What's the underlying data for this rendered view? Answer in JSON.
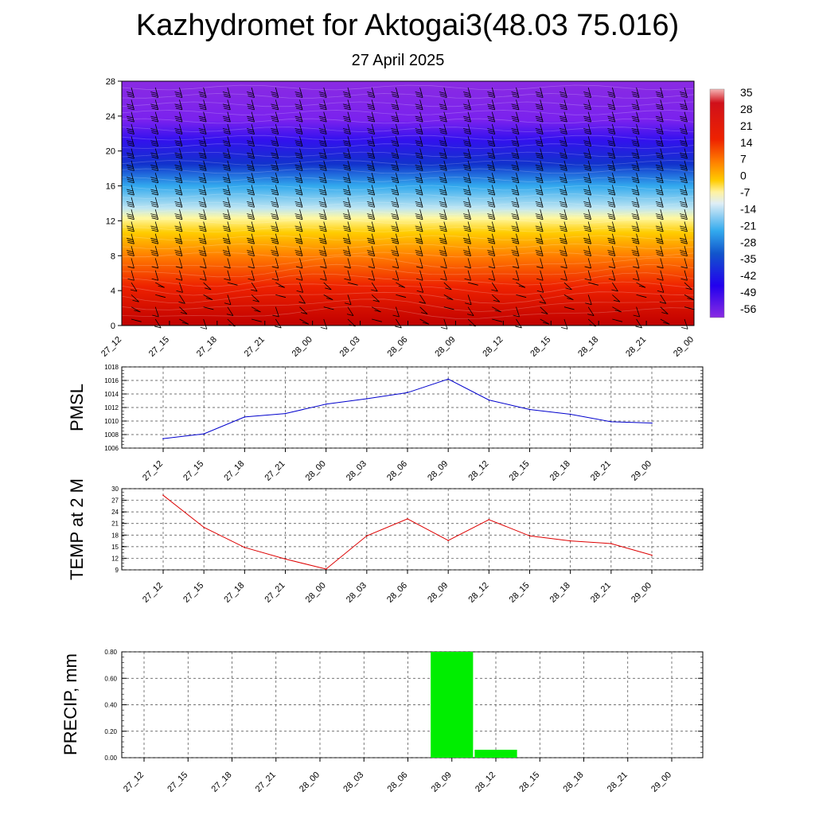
{
  "title": "Kazhydromet for Aktogai3(48.03 75.016)",
  "subtitle": "27 April 2025",
  "colors": {
    "pmsl_line": "#0000cc",
    "temp_line": "#dd0000",
    "precip_bar": "#00ee00"
  },
  "chart_data": [
    {
      "type": "heatmap",
      "name_hint": "cross-section",
      "x_ticks": [
        "27_12",
        "27_15",
        "27_18",
        "27_21",
        "28_00",
        "28_03",
        "28_06",
        "28_09",
        "28_12",
        "28_15",
        "28_18",
        "28_21",
        "29_00"
      ],
      "y_ticks": [
        "0",
        "4",
        "8",
        "12",
        "16",
        "20",
        "24",
        "28"
      ],
      "ylim": [
        0,
        28
      ],
      "colorbar_labels": [
        "35",
        "28",
        "21",
        "14",
        "7",
        "0",
        "-7",
        "-14",
        "-21",
        "-28",
        "-35",
        "-42",
        "-49",
        "-56"
      ],
      "colorbar_range": [
        -60,
        38
      ],
      "overlay": "wind barbs"
    },
    {
      "type": "line",
      "ylabel": "PMSL",
      "x": [
        "27_12",
        "27_15",
        "27_18",
        "27_21",
        "28_00",
        "28_03",
        "28_06",
        "28_09",
        "28_12",
        "28_15",
        "28_18",
        "28_21",
        "29_00"
      ],
      "values": [
        1007.4,
        1008.1,
        1010.6,
        1011.1,
        1012.5,
        1013.3,
        1014.2,
        1016.2,
        1013.1,
        1011.7,
        1011.0,
        1009.9,
        1009.7
      ],
      "ylim": [
        1006,
        1018
      ],
      "y_ticks": [
        "1006",
        "1008",
        "1010",
        "1012",
        "1014",
        "1016",
        "1018"
      ],
      "grid": true
    },
    {
      "type": "line",
      "ylabel": "TEMP at 2 M",
      "x": [
        "27_12",
        "27_15",
        "27_18",
        "27_21",
        "28_00",
        "28_03",
        "28_06",
        "28_09",
        "28_12",
        "28_15",
        "28_18",
        "28_21",
        "29_00"
      ],
      "values": [
        28.3,
        20.0,
        14.8,
        11.8,
        9.2,
        17.8,
        22.2,
        16.6,
        22.0,
        17.8,
        16.5,
        15.8,
        12.8
      ],
      "ylim": [
        9,
        30
      ],
      "y_ticks": [
        "9",
        "12",
        "15",
        "18",
        "21",
        "24",
        "27",
        "30"
      ],
      "grid": true
    },
    {
      "type": "bar",
      "ylabel": "PRECIP, mm",
      "categories": [
        "27_12",
        "27_15",
        "27_18",
        "27_21",
        "28_00",
        "28_03",
        "28_06",
        "28_09",
        "28_12",
        "28_15",
        "28_18",
        "28_21",
        "29_00"
      ],
      "values": [
        0,
        0,
        0,
        0,
        0,
        0,
        0,
        0.8,
        0.06,
        0,
        0,
        0,
        0
      ],
      "ylim": [
        0,
        0.8
      ],
      "y_ticks": [
        "0.00",
        "0.20",
        "0.40",
        "0.60",
        "0.80"
      ],
      "grid": true
    }
  ]
}
